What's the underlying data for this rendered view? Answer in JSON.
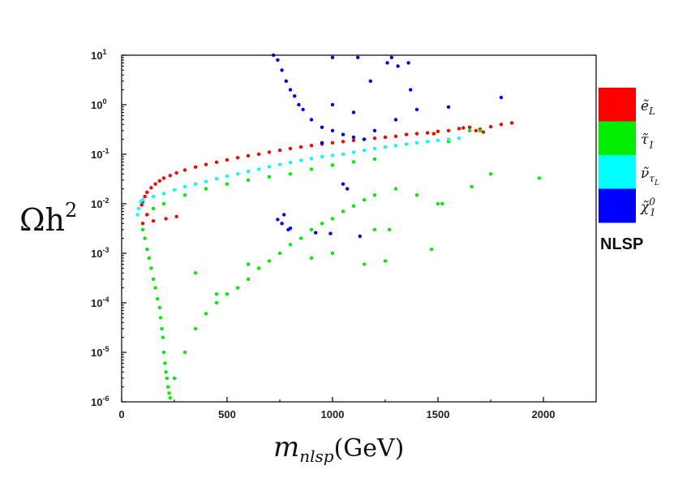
{
  "chart_data": {
    "type": "scatter",
    "title": "",
    "xlabel": {
      "base": "m",
      "sub": "nlsp",
      "unit": "(GeV)"
    },
    "ylabel": {
      "base": "Ωh",
      "sup": "2"
    },
    "xlim": [
      0,
      2250
    ],
    "ylim": [
      1e-06,
      10
    ],
    "yscale": "log",
    "xticks": [
      0,
      500,
      1000,
      1500,
      2000
    ],
    "xtick_labels": [
      "0",
      "500",
      "1000",
      "1500",
      "2000"
    ],
    "yticks": [
      1e-06,
      1e-05,
      0.0001,
      0.001,
      0.01,
      0.1,
      1,
      10
    ],
    "ytick_labels": [
      {
        "base": "10",
        "exp": "-6"
      },
      {
        "base": "10",
        "exp": "-5"
      },
      {
        "base": "10",
        "exp": "-4"
      },
      {
        "base": "10",
        "exp": "-3"
      },
      {
        "base": "10",
        "exp": "-2"
      },
      {
        "base": "10",
        "exp": "-1"
      },
      {
        "base": "10",
        "exp": "0"
      },
      {
        "base": "10",
        "exp": "1"
      }
    ],
    "legend_title": "NLSP",
    "legend_placement": "right",
    "series": [
      {
        "name": "ẽ_L",
        "label_base": "ẽ",
        "label_sub": "L",
        "color": "#ff0000",
        "points": [
          [
            95,
            0.0095
          ],
          [
            100,
            0.011
          ],
          [
            110,
            0.014
          ],
          [
            120,
            0.017
          ],
          [
            140,
            0.021
          ],
          [
            160,
            0.025
          ],
          [
            180,
            0.029
          ],
          [
            200,
            0.033
          ],
          [
            230,
            0.037
          ],
          [
            260,
            0.042
          ],
          [
            300,
            0.048
          ],
          [
            350,
            0.055
          ],
          [
            400,
            0.062
          ],
          [
            450,
            0.069
          ],
          [
            500,
            0.077
          ],
          [
            550,
            0.085
          ],
          [
            600,
            0.093
          ],
          [
            650,
            0.1
          ],
          [
            700,
            0.11
          ],
          [
            750,
            0.12
          ],
          [
            800,
            0.13
          ],
          [
            850,
            0.14
          ],
          [
            900,
            0.15
          ],
          [
            950,
            0.16
          ],
          [
            1000,
            0.17
          ],
          [
            1050,
            0.18
          ],
          [
            1100,
            0.19
          ],
          [
            1150,
            0.2
          ],
          [
            1200,
            0.21
          ],
          [
            1250,
            0.22
          ],
          [
            1300,
            0.23
          ],
          [
            1350,
            0.25
          ],
          [
            1450,
            0.27
          ],
          [
            1500,
            0.29
          ],
          [
            1550,
            0.3
          ],
          [
            1600,
            0.33
          ],
          [
            1650,
            0.35
          ],
          [
            1700,
            0.32
          ],
          [
            1750,
            0.36
          ],
          [
            1800,
            0.4
          ],
          [
            1850,
            0.43
          ],
          [
            1715,
            0.28
          ],
          [
            1620,
            0.34
          ],
          [
            1680,
            0.3
          ],
          [
            1480,
            0.26
          ],
          [
            1400,
            0.26
          ],
          [
            100,
            0.004
          ],
          [
            120,
            0.006
          ],
          [
            150,
            0.0045
          ],
          [
            210,
            0.005
          ],
          [
            260,
            0.0055
          ]
        ]
      },
      {
        "name": "τ̃_1",
        "label_base": "τ̃",
        "label_sub": "1",
        "color": "#00ee00",
        "points": [
          [
            100,
            0.003
          ],
          [
            110,
            0.002
          ],
          [
            120,
            0.0012
          ],
          [
            130,
            0.0008
          ],
          [
            140,
            0.0005
          ],
          [
            150,
            0.0003
          ],
          [
            160,
            0.0002
          ],
          [
            170,
            0.00012
          ],
          [
            180,
            8e-05
          ],
          [
            185,
            5e-05
          ],
          [
            190,
            3e-05
          ],
          [
            195,
            2e-05
          ],
          [
            200,
            1e-05
          ],
          [
            205,
            6e-06
          ],
          [
            210,
            4e-06
          ],
          [
            215,
            3e-06
          ],
          [
            220,
            2e-06
          ],
          [
            225,
            1.5e-06
          ],
          [
            230,
            1.2e-06
          ],
          [
            250,
            3e-06
          ],
          [
            300,
            1e-05
          ],
          [
            350,
            3e-05
          ],
          [
            400,
            6e-05
          ],
          [
            450,
            0.0001
          ],
          [
            500,
            0.00015
          ],
          [
            550,
            0.0002
          ],
          [
            600,
            0.0003
          ],
          [
            650,
            0.0005
          ],
          [
            700,
            0.0007
          ],
          [
            750,
            0.001
          ],
          [
            800,
            0.0015
          ],
          [
            850,
            0.002
          ],
          [
            900,
            0.003
          ],
          [
            950,
            0.004
          ],
          [
            1000,
            0.005
          ],
          [
            1050,
            0.007
          ],
          [
            1100,
            0.009
          ],
          [
            1150,
            0.012
          ],
          [
            1200,
            0.015
          ],
          [
            1300,
            0.02
          ],
          [
            1400,
            0.015
          ],
          [
            1500,
            0.01
          ],
          [
            1200,
            0.08
          ],
          [
            1100,
            0.07
          ],
          [
            1000,
            0.06
          ],
          [
            900,
            0.05
          ],
          [
            800,
            0.04
          ],
          [
            700,
            0.035
          ],
          [
            600,
            0.03
          ],
          [
            500,
            0.025
          ],
          [
            400,
            0.02
          ],
          [
            300,
            0.015
          ],
          [
            200,
            0.01
          ],
          [
            150,
            0.008
          ],
          [
            1650,
            0.3
          ],
          [
            1700,
            0.3
          ],
          [
            1550,
            0.18
          ],
          [
            1750,
            0.04
          ],
          [
            1980,
            0.033
          ],
          [
            1660,
            0.022
          ],
          [
            1520,
            0.01
          ],
          [
            1200,
            0.003
          ],
          [
            1270,
            0.003
          ],
          [
            1470,
            0.0012
          ],
          [
            1250,
            0.0007
          ],
          [
            1150,
            0.0006
          ],
          [
            900,
            0.0008
          ],
          [
            1000,
            0.001
          ],
          [
            600,
            0.0006
          ],
          [
            450,
            0.00015
          ],
          [
            350,
            0.0004
          ]
        ]
      },
      {
        "name": "ν̃_τL",
        "label_base": "ν̃",
        "label_sub": "τ",
        "label_subsub": "L",
        "color": "#00ffff",
        "points": [
          [
            75,
            0.006
          ],
          [
            80,
            0.008
          ],
          [
            90,
            0.011
          ],
          [
            100,
            0.012
          ],
          [
            150,
            0.014
          ],
          [
            200,
            0.016
          ],
          [
            250,
            0.019
          ],
          [
            300,
            0.022
          ],
          [
            350,
            0.025
          ],
          [
            400,
            0.028
          ],
          [
            450,
            0.032
          ],
          [
            500,
            0.036
          ],
          [
            550,
            0.04
          ],
          [
            600,
            0.045
          ],
          [
            650,
            0.05
          ],
          [
            700,
            0.056
          ],
          [
            750,
            0.062
          ],
          [
            800,
            0.068
          ],
          [
            850,
            0.075
          ],
          [
            900,
            0.082
          ],
          [
            950,
            0.089
          ],
          [
            1000,
            0.095
          ],
          [
            1050,
            0.1
          ],
          [
            1100,
            0.11
          ],
          [
            1150,
            0.12
          ],
          [
            1200,
            0.13
          ],
          [
            1250,
            0.14
          ],
          [
            1300,
            0.15
          ],
          [
            1350,
            0.16
          ],
          [
            1400,
            0.17
          ],
          [
            1450,
            0.18
          ],
          [
            1500,
            0.19
          ],
          [
            1550,
            0.2
          ],
          [
            1600,
            0.21
          ]
        ]
      },
      {
        "name": "χ̃_1^0",
        "label_base": "χ̃",
        "label_sub": "1",
        "label_sup": "0",
        "color": "#0000ff",
        "points": [
          [
            720,
            10
          ],
          [
            740,
            8
          ],
          [
            760,
            5
          ],
          [
            780,
            3
          ],
          [
            800,
            2
          ],
          [
            820,
            1.5
          ],
          [
            840,
            1
          ],
          [
            860,
            0.8
          ],
          [
            900,
            0.5
          ],
          [
            950,
            0.35
          ],
          [
            1000,
            0.3
          ],
          [
            1050,
            0.25
          ],
          [
            1100,
            0.22
          ],
          [
            1150,
            0.2
          ],
          [
            1200,
            0.3
          ],
          [
            1300,
            0.5
          ],
          [
            1400,
            0.8
          ],
          [
            1550,
            0.9
          ],
          [
            1800,
            1.4
          ],
          [
            1280,
            9
          ],
          [
            1310,
            6
          ],
          [
            1360,
            7
          ],
          [
            1260,
            7
          ],
          [
            1370,
            2
          ],
          [
            1000,
            9
          ],
          [
            1120,
            9
          ],
          [
            1180,
            3
          ],
          [
            1000,
            1
          ],
          [
            1100,
            0.7
          ],
          [
            950,
            0.17
          ],
          [
            1050,
            0.025
          ],
          [
            1070,
            0.02
          ],
          [
            760,
            0.004
          ],
          [
            770,
            0.006
          ],
          [
            790,
            0.003
          ],
          [
            920,
            0.0026
          ],
          [
            990,
            0.0025
          ],
          [
            800,
            0.0032
          ],
          [
            740,
            0.0048
          ],
          [
            1130,
            0.0022
          ]
        ]
      }
    ]
  }
}
